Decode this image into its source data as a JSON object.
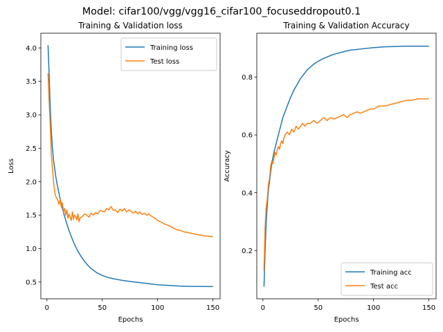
{
  "suptitle": "Model: cifar100/vgg/vgg16_cifar100_focuseddropout0.1",
  "colors": {
    "training": "#1f77b4",
    "test": "#ff7f0e"
  },
  "chart_data": [
    {
      "type": "line",
      "title": "Training & Validation loss",
      "xlabel": "Epochs",
      "ylabel": "Loss",
      "xlim": [
        -5.5,
        156.5
      ],
      "ylim": [
        0.25,
        4.22
      ],
      "xticks": [
        0,
        50,
        100,
        150
      ],
      "yticks": [
        0.5,
        1.0,
        1.5,
        2.0,
        2.5,
        3.0,
        3.5,
        4.0
      ],
      "grid": false,
      "legend": "upper right",
      "series": [
        {
          "name": "Training loss",
          "color": "#1f77b4",
          "x": [
            1,
            2,
            3,
            4,
            5,
            6,
            7,
            8,
            9,
            10,
            12,
            14,
            16,
            18,
            20,
            22,
            25,
            28,
            31,
            34,
            37,
            40,
            45,
            50,
            55,
            60,
            65,
            70,
            75,
            80,
            85,
            90,
            95,
            100,
            105,
            110,
            115,
            120,
            125,
            130,
            135,
            140,
            145,
            150
          ],
          "y": [
            4.04,
            3.6,
            3.1,
            2.75,
            2.5,
            2.32,
            2.2,
            2.08,
            1.98,
            1.9,
            1.74,
            1.6,
            1.48,
            1.37,
            1.27,
            1.18,
            1.06,
            0.96,
            0.88,
            0.81,
            0.75,
            0.7,
            0.64,
            0.6,
            0.57,
            0.55,
            0.535,
            0.52,
            0.51,
            0.5,
            0.49,
            0.48,
            0.47,
            0.46,
            0.455,
            0.45,
            0.445,
            0.44,
            0.438,
            0.436,
            0.435,
            0.435,
            0.434,
            0.434
          ]
        },
        {
          "name": "Test loss",
          "color": "#ff7f0e",
          "x": [
            1,
            2,
            3,
            4,
            5,
            6,
            7,
            8,
            9,
            10,
            11,
            12,
            13,
            14,
            15,
            16,
            17,
            18,
            19,
            20,
            21,
            22,
            23,
            24,
            25,
            26,
            27,
            28,
            29,
            30,
            32,
            34,
            36,
            38,
            40,
            42,
            44,
            46,
            48,
            50,
            52,
            54,
            56,
            58,
            60,
            62,
            64,
            66,
            68,
            70,
            72,
            74,
            76,
            78,
            80,
            82,
            84,
            86,
            88,
            90,
            92,
            94,
            96,
            98,
            100,
            103,
            106,
            109,
            112,
            115,
            118,
            121,
            124,
            127,
            130,
            133,
            136,
            139,
            142,
            145,
            148,
            150
          ],
          "y": [
            3.62,
            3.2,
            2.85,
            2.4,
            2.2,
            2.0,
            1.85,
            1.78,
            1.75,
            1.72,
            1.66,
            1.74,
            1.62,
            1.68,
            1.55,
            1.6,
            1.5,
            1.58,
            1.45,
            1.52,
            1.47,
            1.42,
            1.55,
            1.44,
            1.5,
            1.48,
            1.43,
            1.52,
            1.4,
            1.46,
            1.48,
            1.52,
            1.5,
            1.47,
            1.53,
            1.5,
            1.54,
            1.52,
            1.57,
            1.56,
            1.55,
            1.6,
            1.58,
            1.63,
            1.57,
            1.58,
            1.54,
            1.59,
            1.56,
            1.6,
            1.55,
            1.58,
            1.56,
            1.53,
            1.56,
            1.52,
            1.55,
            1.51,
            1.53,
            1.5,
            1.52,
            1.49,
            1.47,
            1.45,
            1.42,
            1.4,
            1.37,
            1.35,
            1.33,
            1.3,
            1.28,
            1.27,
            1.25,
            1.24,
            1.23,
            1.22,
            1.21,
            1.2,
            1.19,
            1.19,
            1.18,
            1.18
          ]
        }
      ]
    },
    {
      "type": "line",
      "title": "Training & Validation Accuracy",
      "xlabel": "Epochs",
      "ylabel": "Accuracy",
      "xlim": [
        -5.5,
        156.5
      ],
      "ylim": [
        0.033,
        0.952
      ],
      "xticks": [
        0,
        50,
        100,
        150
      ],
      "yticks": [
        0.2,
        0.4,
        0.6,
        0.8
      ],
      "grid": false,
      "legend": "lower right",
      "series": [
        {
          "name": "Training acc",
          "color": "#1f77b4",
          "x": [
            1,
            2,
            3,
            4,
            5,
            6,
            7,
            8,
            9,
            10,
            12,
            14,
            16,
            18,
            20,
            22,
            25,
            28,
            31,
            34,
            37,
            40,
            43,
            46,
            50,
            55,
            60,
            65,
            70,
            75,
            80,
            90,
            100,
            110,
            120,
            130,
            140,
            150
          ],
          "y": [
            0.075,
            0.2,
            0.3,
            0.36,
            0.41,
            0.44,
            0.47,
            0.5,
            0.52,
            0.54,
            0.57,
            0.6,
            0.63,
            0.66,
            0.68,
            0.7,
            0.73,
            0.755,
            0.775,
            0.795,
            0.81,
            0.825,
            0.835,
            0.845,
            0.855,
            0.865,
            0.873,
            0.88,
            0.885,
            0.89,
            0.894,
            0.898,
            0.902,
            0.905,
            0.906,
            0.907,
            0.907,
            0.907
          ]
        },
        {
          "name": "Test acc",
          "color": "#ff7f0e",
          "x": [
            1,
            2,
            3,
            4,
            5,
            6,
            7,
            8,
            9,
            10,
            11,
            12,
            13,
            14,
            15,
            16,
            17,
            18,
            19,
            20,
            22,
            24,
            26,
            28,
            30,
            32,
            34,
            36,
            38,
            40,
            43,
            46,
            49,
            52,
            55,
            58,
            61,
            64,
            67,
            70,
            73,
            76,
            79,
            82,
            85,
            88,
            91,
            94,
            97,
            100,
            105,
            110,
            115,
            120,
            125,
            130,
            135,
            140,
            145,
            150
          ],
          "y": [
            0.13,
            0.28,
            0.35,
            0.38,
            0.43,
            0.45,
            0.49,
            0.51,
            0.5,
            0.52,
            0.54,
            0.53,
            0.55,
            0.56,
            0.55,
            0.57,
            0.58,
            0.57,
            0.59,
            0.6,
            0.61,
            0.6,
            0.62,
            0.61,
            0.63,
            0.62,
            0.63,
            0.64,
            0.63,
            0.64,
            0.64,
            0.65,
            0.64,
            0.65,
            0.66,
            0.65,
            0.66,
            0.655,
            0.66,
            0.665,
            0.67,
            0.66,
            0.67,
            0.675,
            0.68,
            0.675,
            0.68,
            0.685,
            0.69,
            0.69,
            0.7,
            0.7,
            0.705,
            0.71,
            0.715,
            0.72,
            0.72,
            0.725,
            0.725,
            0.725
          ]
        }
      ]
    }
  ]
}
